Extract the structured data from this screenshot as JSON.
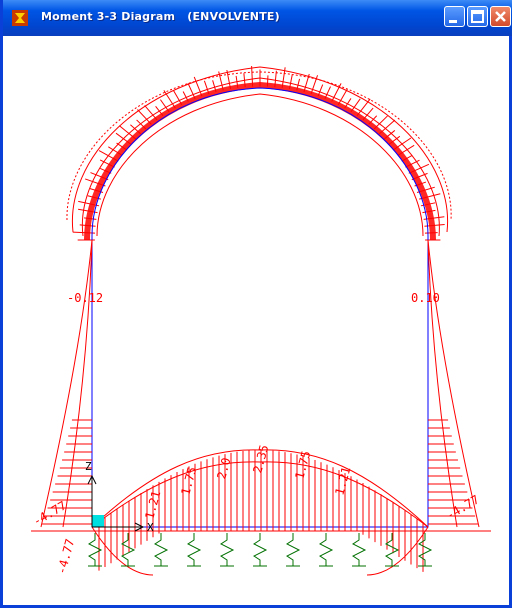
{
  "window": {
    "title": "Moment 3-3 Diagram   (ENVOLVENTE)",
    "icon": "sap-app-icon",
    "buttons": [
      "minimize-icon",
      "maximize-icon",
      "close-icon"
    ]
  },
  "diagram": {
    "left_wall_label": "-0.12",
    "right_wall_label": "0.10",
    "left_end_label": "-4.77",
    "right_end_label": "-4.77",
    "left_corner_label": "-4.77",
    "axis_labels": {
      "z": "Z",
      "x": "X"
    },
    "slab_labels": [
      "1.21",
      "1.75",
      "2.0",
      "2.35",
      "1.75",
      "1.21"
    ],
    "member_colors": {
      "frame": "#0000ff",
      "moment": "#ff0000",
      "support": "#007000",
      "joint": "#00e0e0"
    }
  }
}
